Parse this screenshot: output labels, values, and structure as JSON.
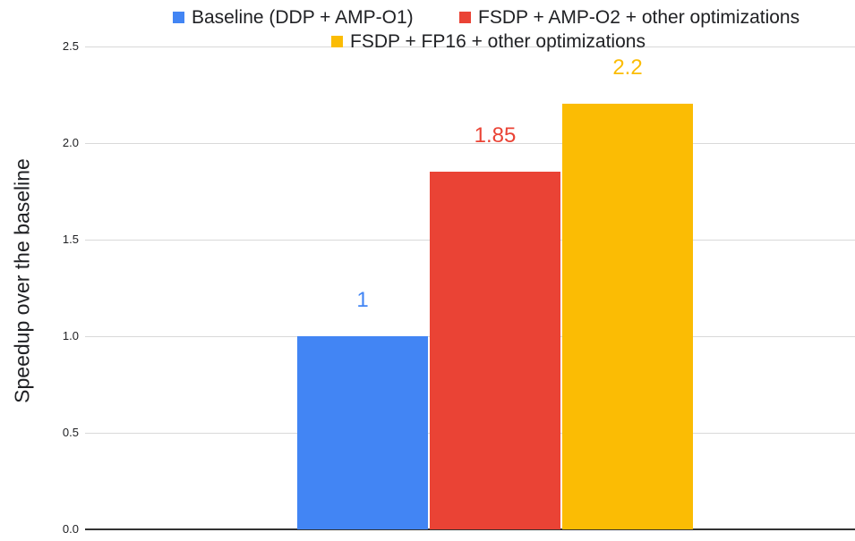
{
  "chart_data": {
    "type": "bar",
    "title": "",
    "xlabel": "",
    "ylabel": "Speedup over the baseline",
    "categories": [
      ""
    ],
    "series": [
      {
        "slug": "baseline-ddp-amp-o1",
        "name": "Baseline (DDP + AMP-O1)",
        "values": [
          1
        ],
        "data_label": "1",
        "color": "#4285F4"
      },
      {
        "slug": "fsdp-amp-o2",
        "name": "FSDP + AMP-O2 + other optimizations",
        "values": [
          1.85
        ],
        "data_label": "1.85",
        "color": "#EA4335"
      },
      {
        "slug": "fsdp-fp16",
        "name": "FSDP + FP16 + other optimizations",
        "values": [
          2.2
        ],
        "data_label": "2.2",
        "color": "#FBBC04"
      }
    ],
    "ylim": [
      0,
      2.5
    ],
    "yticks": [
      "0.0",
      "0.5",
      "1.0",
      "1.5",
      "2.0",
      "2.5"
    ],
    "grid": true,
    "legend_position": "top",
    "colors": {
      "gridline": "#d9d9d9",
      "axis_line": "#333333",
      "text": "#202124"
    }
  }
}
